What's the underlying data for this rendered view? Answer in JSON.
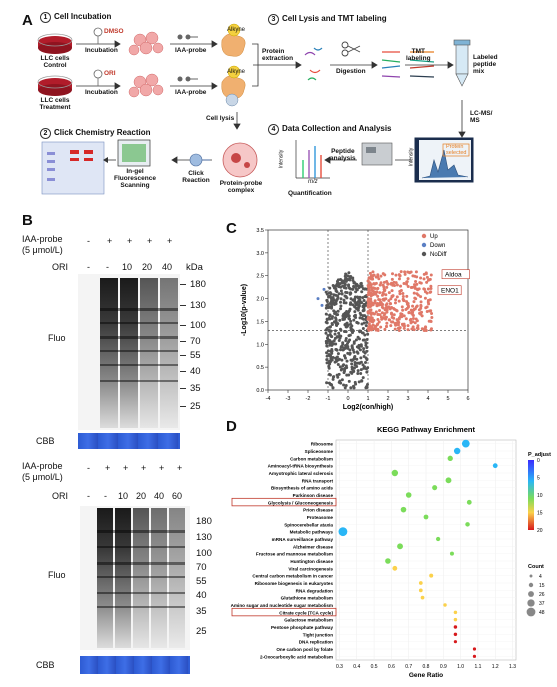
{
  "panel_a": {
    "letter": "A",
    "steps": [
      {
        "num": "1",
        "label": "Cell Incubation"
      },
      {
        "num": "2",
        "label": "Click Chemistry Reaction"
      },
      {
        "num": "3",
        "label": "Cell Lysis and TMT labeling"
      },
      {
        "num": "4",
        "label": "Data Collection and Analysis"
      }
    ],
    "labels": {
      "llc_control": "LLC cells\nControl",
      "llc_treatment": "LLC cells\nTreatment",
      "dmso": "DMSO",
      "ori": "ORI",
      "incubation1": "Incubation",
      "incubation2": "Incubation",
      "iaa_probe1": "IAA-probe",
      "iaa_probe2": "IAA-probe",
      "alkyne1": "Alkyne",
      "alkyne2": "Alkyne",
      "protein_extraction": "Protein\nextraction",
      "digestion": "Digestion",
      "tmt_labeling": "TMT\nlabeling",
      "labeled_peptide_mix": "Labeled\npeptide\nmix",
      "lcms": "LC-MS/\nMS",
      "cell_lysis": "Cell lysis",
      "in_gel": "In-gel\nFluorescence\nScanning",
      "click_reaction": "Click\nReaction",
      "protein_probe_complex": "Protein-probe\ncomplex",
      "quantification": "Quantification",
      "peptide_analysis": "Peptide\nanalysis",
      "protein_selected": "Protein\nselected",
      "intensity": "Intensity",
      "mz": "m/z"
    }
  },
  "panel_b": {
    "letter": "B",
    "top": {
      "probe_label": "IAA-probe\n(5 μmol/L)",
      "probe_signs": [
        "-",
        "+",
        "+",
        "+",
        "+"
      ],
      "ori_label": "ORI",
      "ori_values": [
        "-",
        "-",
        "10",
        "20",
        "40"
      ],
      "kda_label": "kDa",
      "markers": [
        "180",
        "130",
        "100",
        "70",
        "55",
        "40",
        "35",
        "25"
      ],
      "fluo": "Fluo",
      "cbb": "CBB"
    },
    "bottom": {
      "probe_label": "IAA-probe\n(5 μmol/L)",
      "probe_signs": [
        "-",
        "+",
        "+",
        "+",
        "+",
        "+"
      ],
      "ori_label": "ORI",
      "ori_values": [
        "-",
        "-",
        "10",
        "20",
        "40",
        "60"
      ],
      "markers": [
        "180",
        "130",
        "100",
        "70",
        "55",
        "40",
        "35",
        "25"
      ],
      "fluo": "Fluo",
      "cbb": "CBB"
    }
  },
  "chart_data": [
    {
      "type": "scatter",
      "panel": "C",
      "xlabel": "Log2(con/high)",
      "ylabel": "-Log10(p-value)",
      "xlim": [
        -4,
        6
      ],
      "ylim": [
        0,
        3.5
      ],
      "x_ticks": [
        "-4",
        "-3",
        "-2",
        "-1",
        "0",
        "1",
        "2",
        "3",
        "4",
        "5",
        "6"
      ],
      "y_ticks": [
        "0.0",
        "0.5",
        "1.0",
        "1.5",
        "2.0",
        "2.5",
        "3.0",
        "3.5"
      ],
      "thresholds": {
        "x": [
          -1,
          1
        ],
        "y": 1.3
      },
      "legend": [
        {
          "name": "Up",
          "color": "#e07868"
        },
        {
          "name": "Down",
          "color": "#5b7fc4"
        },
        {
          "name": "NoDiff",
          "color": "#555555"
        }
      ],
      "legend_position": "top-right",
      "annotations": [
        {
          "text": "Aldoa",
          "x": 4.5,
          "y": 2.5
        },
        {
          "text": "ENO1",
          "x": 4.3,
          "y": 2.15
        }
      ]
    },
    {
      "type": "scatter",
      "panel": "D",
      "title": "KEGG Pathway Enrichment",
      "xlabel": "Gene Ratio",
      "x_ticks": [
        "0.3",
        "0.4",
        "0.5",
        "0.6",
        "0.7",
        "0.8",
        "0.9",
        "1.0",
        "1.1",
        "1.2",
        "1.3"
      ],
      "xlim": [
        0.28,
        1.32
      ],
      "colorbar_label": "P_adjust",
      "colorbar_ticks": [
        "0",
        "5",
        "10",
        "15",
        "20"
      ],
      "size_legend_label": "Count",
      "size_legend": [
        "4",
        "15",
        "26",
        "37",
        "48"
      ],
      "highlighted": [
        "Glycolysis / Gluconeogenesis",
        "Citrate cycle (TCA cycle)"
      ],
      "categories": [
        "Ribosome",
        "Spliceosome",
        "Carbon metabolism",
        "Aminoacyl-tRNA biosynthesis",
        "Amyotrophic lateral sclerosis",
        "RNA transport",
        "Biosynthesis of amino acids",
        "Parkinson disease",
        "Glycolysis / Gluconeogenesis",
        "Prion disease",
        "Proteasome",
        "Spinocerebellar ataxia",
        "Metabolic pathways",
        "mRNA surveillance pathway",
        "Alzheimer disease",
        "Fructose and mannose metabolism",
        "Huntington disease",
        "Viral carcinogenesis",
        "Central carbon metabolism in cancer",
        "Ribosome biogenesis in eukaryotes",
        "RNA degradation",
        "Glutathione metabolism",
        "Amino sugar and nucleotide sugar metabolism",
        "Citrate cycle (TCA cycle)",
        "Galactose metabolism",
        "Pentose phosphate pathway",
        "Tight junction",
        "DNA replication",
        "One carbon pool by folate",
        "2-Oxocarboxylic acid metabolism"
      ],
      "points": [
        {
          "x": 1.03,
          "p": 3,
          "count": 40
        },
        {
          "x": 0.98,
          "p": 6,
          "count": 30
        },
        {
          "x": 0.94,
          "p": 8,
          "count": 22
        },
        {
          "x": 1.2,
          "p": 6,
          "count": 18
        },
        {
          "x": 0.62,
          "p": 7,
          "count": 30
        },
        {
          "x": 0.93,
          "p": 8,
          "count": 26
        },
        {
          "x": 0.85,
          "p": 8,
          "count": 20
        },
        {
          "x": 0.7,
          "p": 7,
          "count": 24
        },
        {
          "x": 1.05,
          "p": 9,
          "count": 18
        },
        {
          "x": 0.67,
          "p": 8,
          "count": 24
        },
        {
          "x": 0.8,
          "p": 9,
          "count": 18
        },
        {
          "x": 1.04,
          "p": 9,
          "count": 16
        },
        {
          "x": 0.32,
          "p": 6,
          "count": 48
        },
        {
          "x": 0.87,
          "p": 10,
          "count": 14
        },
        {
          "x": 0.65,
          "p": 9,
          "count": 26
        },
        {
          "x": 0.95,
          "p": 10,
          "count": 12
        },
        {
          "x": 0.58,
          "p": 11,
          "count": 24
        },
        {
          "x": 0.62,
          "p": 12,
          "count": 18
        },
        {
          "x": 0.83,
          "p": 12,
          "count": 12
        },
        {
          "x": 0.77,
          "p": 13,
          "count": 10
        },
        {
          "x": 0.77,
          "p": 13,
          "count": 10
        },
        {
          "x": 0.78,
          "p": 14,
          "count": 10
        },
        {
          "x": 0.91,
          "p": 14,
          "count": 8
        },
        {
          "x": 0.97,
          "p": 15,
          "count": 8
        },
        {
          "x": 0.97,
          "p": 15,
          "count": 8
        },
        {
          "x": 0.97,
          "p": 16,
          "count": 8
        },
        {
          "x": 0.97,
          "p": 16,
          "count": 8
        },
        {
          "x": 0.97,
          "p": 17,
          "count": 6
        },
        {
          "x": 1.08,
          "p": 18,
          "count": 6
        },
        {
          "x": 1.08,
          "p": 18,
          "count": 6
        }
      ]
    }
  ]
}
